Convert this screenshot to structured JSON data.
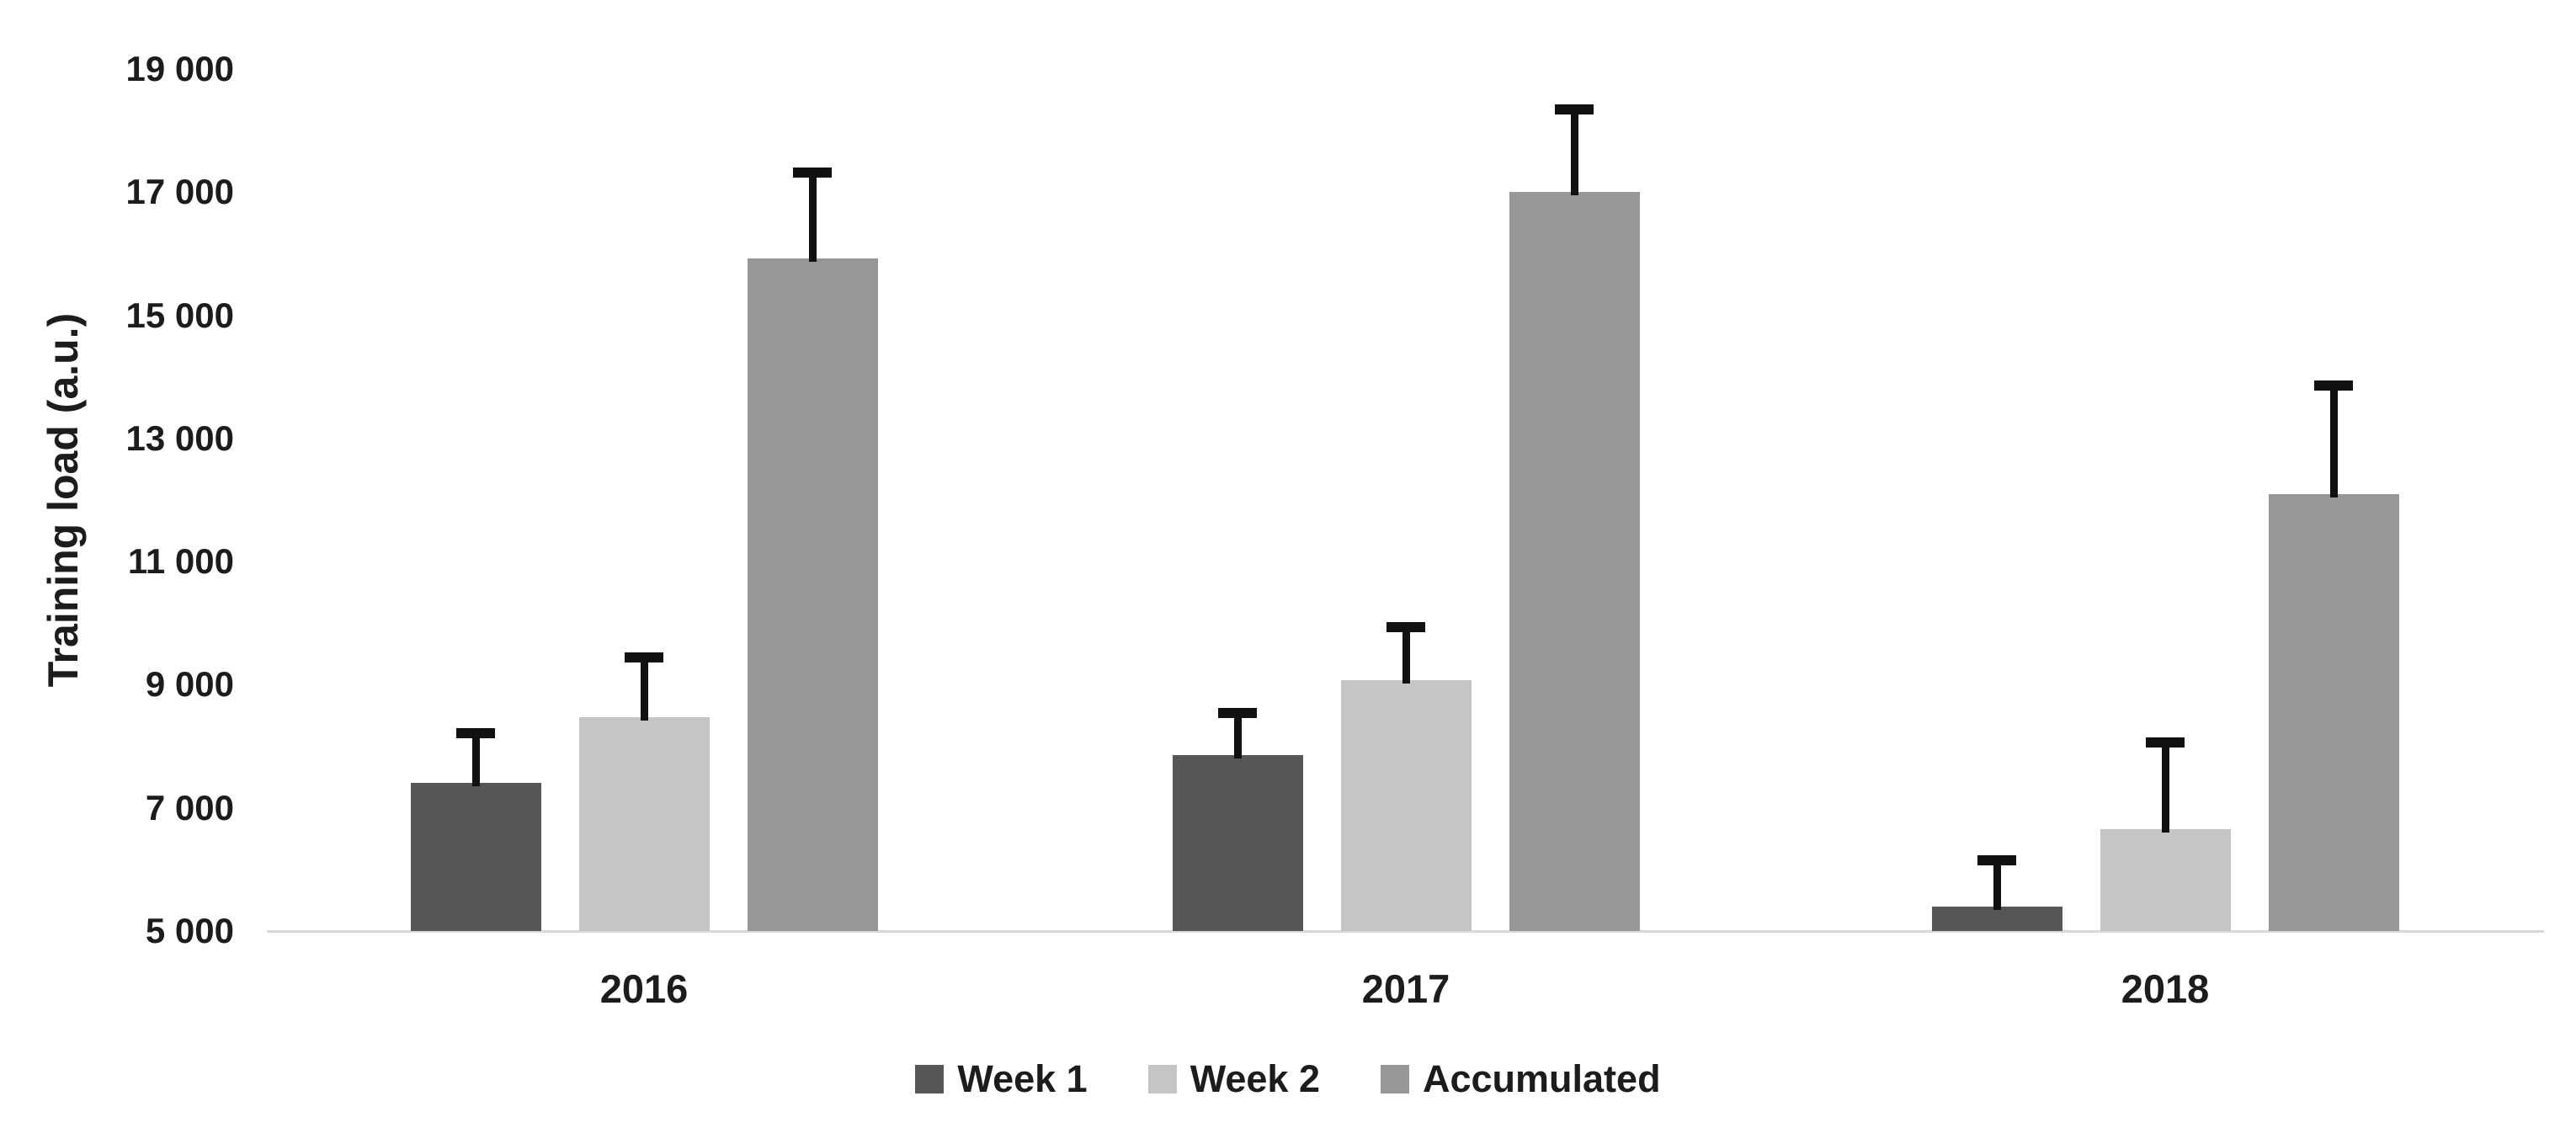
{
  "chart_data": {
    "type": "bar",
    "title": "",
    "xlabel": "",
    "ylabel": "Training load (a.u.)",
    "ylim": [
      5000,
      19000
    ],
    "ytick_values": [
      5000,
      7000,
      9000,
      11000,
      13000,
      15000,
      17000,
      19000
    ],
    "ytick_labels": [
      "5 000",
      "7 000",
      "9 000",
      "11 000",
      "13 000",
      "15 000",
      "17 000",
      "19 000"
    ],
    "categories": [
      "2016",
      "2017",
      "2018"
    ],
    "series": [
      {
        "name": "Week 1",
        "color": "#565656",
        "values": [
          7400,
          7860,
          5400
        ],
        "errors_plus": [
          810,
          680,
          750
        ]
      },
      {
        "name": "Week 2",
        "color": "#c5c5c5",
        "values": [
          8470,
          9080,
          6650
        ],
        "errors_plus": [
          980,
          860,
          1410
        ]
      },
      {
        "name": "Accumulated",
        "color": "#979797",
        "values": [
          15930,
          17000,
          12100
        ],
        "errors_plus": [
          1390,
          1340,
          1760
        ]
      }
    ],
    "grid": false,
    "legend_position": "bottom",
    "colors": {
      "error_bar": "#111111",
      "axis_line": "#d9d9d9",
      "text": "#1c1c1c",
      "background": "#ffffff"
    }
  }
}
